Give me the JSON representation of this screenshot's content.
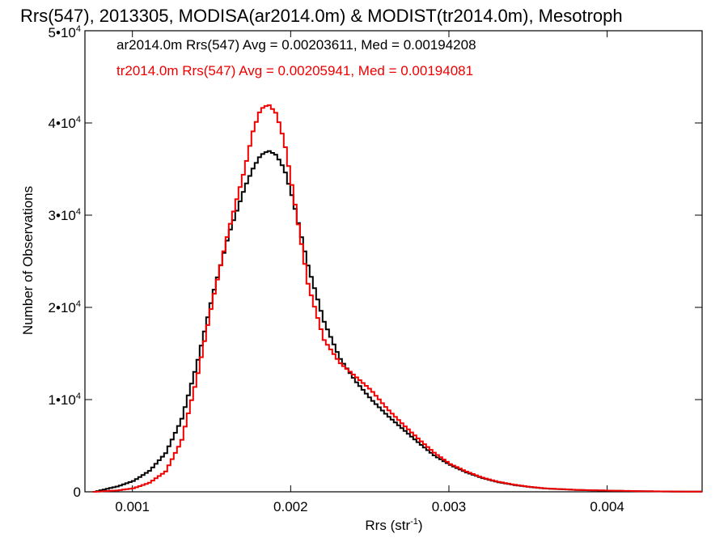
{
  "chart_data": {
    "type": "line",
    "title": "Rrs(547), 2013305, MODISA(ar2014.0m) & MODIST(tr2014.0m), Mesotroph",
    "xlabel": {
      "base": "Rrs (str",
      "exp": "-1",
      "tail": ")"
    },
    "ylabel": "Number of Observations",
    "xlim": [
      0.0007,
      0.0046
    ],
    "ylim": [
      0,
      50000
    ],
    "grid": false,
    "legend_position": "top-left",
    "x_ticks": [
      {
        "value": 0.001,
        "label": "0.001"
      },
      {
        "value": 0.002,
        "label": "0.002"
      },
      {
        "value": 0.003,
        "label": "0.003"
      },
      {
        "value": 0.004,
        "label": "0.004"
      }
    ],
    "y_ticks": [
      {
        "value": 0,
        "mant": "0",
        "exp": ""
      },
      {
        "value": 10000,
        "mant": "1•10",
        "exp": "4"
      },
      {
        "value": 20000,
        "mant": "2•10",
        "exp": "4"
      },
      {
        "value": 30000,
        "mant": "3•10",
        "exp": "4"
      },
      {
        "value": 40000,
        "mant": "4•10",
        "exp": "4"
      },
      {
        "value": 50000,
        "mant": "5•10",
        "exp": "4"
      }
    ],
    "series": [
      {
        "name": "ar2014.0m Rrs(547) Avg = 0.00203611, Med = 0.00194208",
        "color": "#000000",
        "x": [
          0.00075,
          0.0008,
          0.0009,
          0.001,
          0.0011,
          0.0012,
          0.0013,
          0.0014,
          0.0015,
          0.0016,
          0.0017,
          0.00175,
          0.0018,
          0.00185,
          0.0019,
          0.00195,
          0.002,
          0.0021,
          0.0022,
          0.0023,
          0.0024,
          0.0025,
          0.0026,
          0.0027,
          0.0028,
          0.0029,
          0.003,
          0.0031,
          0.0032,
          0.0033,
          0.0034,
          0.0035,
          0.0036,
          0.0038,
          0.004,
          0.0042,
          0.0044,
          0.0046
        ],
        "y": [
          0,
          200,
          600,
          1200,
          2300,
          4200,
          7800,
          14000,
          21500,
          28000,
          33000,
          35000,
          36500,
          37000,
          36500,
          35000,
          32000,
          24500,
          18500,
          14500,
          12000,
          10000,
          8300,
          6800,
          5300,
          3900,
          2900,
          2100,
          1500,
          1050,
          750,
          520,
          360,
          200,
          120,
          60,
          30,
          20
        ]
      },
      {
        "name": "tr2014.0m Rrs(547) Avg = 0.00205941, Med = 0.00194081",
        "color": "#ee0000",
        "x": [
          0.00075,
          0.0008,
          0.0009,
          0.001,
          0.0011,
          0.0012,
          0.0013,
          0.0014,
          0.0015,
          0.0016,
          0.0017,
          0.00175,
          0.0018,
          0.00185,
          0.0019,
          0.00195,
          0.002,
          0.0021,
          0.0022,
          0.0023,
          0.0024,
          0.0025,
          0.0026,
          0.0027,
          0.0028,
          0.0029,
          0.003,
          0.0031,
          0.0032,
          0.0033,
          0.0034,
          0.0035,
          0.0036,
          0.0038,
          0.004,
          0.0042,
          0.0044,
          0.0046
        ],
        "y": [
          0,
          50,
          150,
          400,
          1000,
          2200,
          5500,
          12500,
          21000,
          28500,
          35000,
          39000,
          41500,
          42000,
          41000,
          38000,
          33000,
          22500,
          16500,
          14000,
          12500,
          11000,
          9000,
          7300,
          5700,
          4200,
          3000,
          2200,
          1550,
          1100,
          780,
          540,
          370,
          210,
          130,
          70,
          35,
          20
        ]
      }
    ]
  }
}
